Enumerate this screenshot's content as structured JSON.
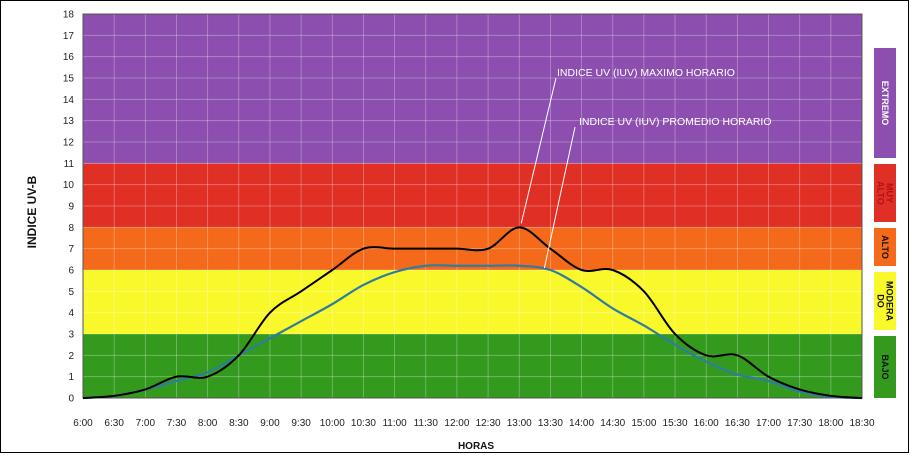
{
  "chart_data": {
    "type": "line",
    "xlabel": "HORAS",
    "ylabel": "INDICE UV-B",
    "ylim": [
      0,
      18
    ],
    "yticks": [
      0,
      1,
      2,
      3,
      4,
      5,
      6,
      7,
      8,
      9,
      10,
      11,
      12,
      13,
      14,
      15,
      16,
      17,
      18
    ],
    "x": [
      "6:00",
      "6:30",
      "7:00",
      "7:30",
      "8:00",
      "8:30",
      "9:00",
      "9:30",
      "10:00",
      "10:30",
      "11:00",
      "11:30",
      "12:00",
      "12:30",
      "13:00",
      "13:30",
      "14:00",
      "14:30",
      "15:00",
      "15:30",
      "16:00",
      "16:30",
      "17:00",
      "17:30",
      "18:00",
      "18:30"
    ],
    "series": [
      {
        "name": "INDICE UV (IUV) MAXIMO HORARIO",
        "color": "#000000",
        "values": [
          0,
          0.1,
          0.4,
          1.0,
          1.0,
          2.0,
          4.0,
          5.0,
          6.0,
          7.0,
          7.0,
          7.0,
          7.0,
          7.0,
          8.0,
          7.0,
          6.0,
          6.0,
          5.0,
          3.0,
          2.0,
          2.0,
          1.0,
          0.4,
          0.1,
          0
        ]
      },
      {
        "name": "INDICE UV (IUV) PROMEDIO HORARIO",
        "color": "#2e7d9e",
        "values": [
          0,
          0.1,
          0.4,
          0.8,
          1.2,
          2.0,
          2.8,
          3.6,
          4.4,
          5.3,
          5.9,
          6.2,
          6.2,
          6.2,
          6.2,
          6.0,
          5.2,
          4.2,
          3.4,
          2.5,
          1.7,
          1.1,
          0.8,
          0.3,
          0.05,
          0
        ]
      }
    ],
    "bands": [
      {
        "label": "BAJO",
        "from": 0,
        "to": 3,
        "color": "#339a1e",
        "label_color": "#111111"
      },
      {
        "label": "MODERA DO",
        "from": 3,
        "to": 6,
        "color": "#f8f82a",
        "label_color": "#111111"
      },
      {
        "label": "ALTO",
        "from": 6,
        "to": 8,
        "color": "#f46a1a",
        "label_color": "#111111"
      },
      {
        "label": "MUY ALTO",
        "from": 8,
        "to": 11,
        "color": "#e03026",
        "label_color": "#b0101a"
      },
      {
        "label": "EXTREMO",
        "from": 11,
        "to": 18,
        "color": "#8c4fb0",
        "label_color": "#ffffff"
      }
    ],
    "grid": true
  }
}
